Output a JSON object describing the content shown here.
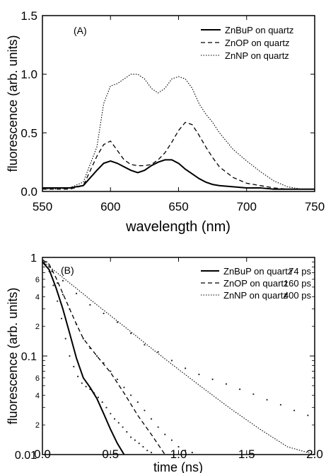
{
  "chart_data": [
    {
      "type": "line",
      "panel_label": "(A)",
      "xlabel": "wavelength (nm)",
      "ylabel": "fluorescence (arb. units)",
      "xlim": [
        550,
        750
      ],
      "ylim": [
        0,
        1.5
      ],
      "x_ticks": [
        550,
        600,
        650,
        700,
        750
      ],
      "x_tick_labels": [
        "550",
        "600",
        "650",
        "700",
        "750"
      ],
      "y_ticks": [
        0,
        0.5,
        1.0,
        1.5
      ],
      "y_tick_labels": [
        "0.0",
        "0.5",
        "1.0",
        "1.5"
      ],
      "grid": false,
      "legend_position": "top-right",
      "series": [
        {
          "name": "ZnBuP on quartz",
          "style": "solid",
          "x": [
            550,
            560,
            570,
            580,
            590,
            595,
            600,
            605,
            610,
            615,
            620,
            625,
            630,
            635,
            640,
            645,
            650,
            655,
            660,
            665,
            670,
            675,
            680,
            690,
            700,
            710,
            720,
            730,
            740,
            750
          ],
          "y": [
            0.03,
            0.03,
            0.03,
            0.05,
            0.18,
            0.24,
            0.26,
            0.24,
            0.21,
            0.18,
            0.16,
            0.18,
            0.22,
            0.25,
            0.27,
            0.27,
            0.24,
            0.19,
            0.15,
            0.11,
            0.08,
            0.06,
            0.05,
            0.04,
            0.03,
            0.03,
            0.02,
            0.02,
            0.02,
            0.02
          ]
        },
        {
          "name": "ZnOP on quartz",
          "style": "dashed",
          "x": [
            550,
            560,
            570,
            580,
            590,
            595,
            600,
            605,
            610,
            615,
            620,
            625,
            630,
            635,
            640,
            645,
            650,
            655,
            660,
            665,
            670,
            675,
            680,
            690,
            700,
            710,
            720,
            730,
            740,
            750
          ],
          "y": [
            0.02,
            0.02,
            0.02,
            0.05,
            0.3,
            0.4,
            0.43,
            0.35,
            0.27,
            0.23,
            0.22,
            0.22,
            0.23,
            0.27,
            0.33,
            0.42,
            0.52,
            0.59,
            0.57,
            0.48,
            0.38,
            0.29,
            0.21,
            0.12,
            0.07,
            0.05,
            0.03,
            0.02,
            0.02,
            0.02
          ]
        },
        {
          "name": "ZnNP on quartz",
          "style": "dotted",
          "x": [
            550,
            560,
            570,
            580,
            590,
            595,
            600,
            605,
            610,
            615,
            620,
            625,
            630,
            635,
            640,
            645,
            650,
            655,
            660,
            665,
            670,
            675,
            680,
            690,
            700,
            710,
            720,
            730,
            740,
            750
          ],
          "y": [
            0.02,
            0.02,
            0.03,
            0.08,
            0.38,
            0.75,
            0.9,
            0.92,
            0.96,
            1.0,
            1.0,
            0.96,
            0.88,
            0.84,
            0.88,
            0.96,
            0.98,
            0.96,
            0.88,
            0.75,
            0.66,
            0.59,
            0.5,
            0.36,
            0.26,
            0.17,
            0.09,
            0.04,
            0.02,
            0.02
          ]
        }
      ]
    },
    {
      "type": "scatter",
      "panel_label": "(B)",
      "xlabel": "time (ns)",
      "ylabel": "fluorescence (arb. units)",
      "xlim": [
        0,
        2.0
      ],
      "ylim": [
        0.01,
        1
      ],
      "y_scale": "log",
      "x_ticks": [
        0,
        0.5,
        1.0,
        1.5,
        2.0
      ],
      "x_tick_labels": [
        "0.0",
        "0.5",
        "1.0",
        "1.5",
        "2.0"
      ],
      "y_ticks": [
        0.01,
        0.1,
        1
      ],
      "y_tick_labels": [
        "0.01",
        "0.1",
        "1"
      ],
      "y_minor_ticks": [
        0.02,
        0.04,
        0.06,
        0.2,
        0.4,
        0.6
      ],
      "y_minor_tick_labels": [
        "2",
        "4",
        "6",
        "2",
        "4",
        "6"
      ],
      "grid": false,
      "legend_position": "top-right",
      "series": [
        {
          "name": "ZnBuP on quartz",
          "lifetime": "74 ps",
          "style": "solid",
          "fit_x": [
            0.0,
            0.05,
            0.1,
            0.15,
            0.2,
            0.25,
            0.3,
            0.35,
            0.4,
            0.45,
            0.5,
            0.55,
            0.6
          ],
          "fit_y": [
            0.9,
            0.75,
            0.49,
            0.3,
            0.17,
            0.095,
            0.06,
            0.048,
            0.037,
            0.026,
            0.018,
            0.013,
            0.01
          ],
          "data_x": [
            0.02,
            0.05,
            0.08,
            0.11,
            0.14,
            0.17,
            0.2,
            0.23,
            0.26,
            0.29,
            0.32,
            0.35,
            0.38,
            0.41,
            0.44,
            0.47,
            0.5,
            0.53,
            0.56,
            0.59,
            0.62,
            0.65,
            0.68,
            0.71,
            0.74,
            0.77,
            0.8
          ],
          "data_y": [
            0.85,
            0.72,
            0.52,
            0.36,
            0.24,
            0.15,
            0.1,
            0.078,
            0.062,
            0.053,
            0.049,
            0.046,
            0.042,
            0.038,
            0.034,
            0.03,
            0.026,
            0.023,
            0.021,
            0.019,
            0.017,
            0.015,
            0.014,
            0.013,
            0.012,
            0.011,
            0.0105
          ]
        },
        {
          "name": "ZnOP on quartz",
          "lifetime": "160 ps",
          "style": "dashed",
          "fit_x": [
            0.0,
            0.05,
            0.1,
            0.15,
            0.2,
            0.25,
            0.3,
            0.4,
            0.5,
            0.6,
            0.7,
            0.8,
            0.9
          ],
          "fit_y": [
            0.95,
            0.85,
            0.62,
            0.43,
            0.3,
            0.21,
            0.15,
            0.1,
            0.068,
            0.042,
            0.025,
            0.016,
            0.01
          ],
          "data_x": [
            0.03,
            0.07,
            0.11,
            0.15,
            0.2,
            0.25,
            0.3,
            0.35,
            0.4,
            0.45,
            0.5,
            0.55,
            0.6,
            0.65,
            0.7,
            0.75,
            0.8,
            0.85,
            0.9,
            0.95,
            1.0,
            1.05,
            1.1
          ],
          "data_y": [
            0.9,
            0.72,
            0.55,
            0.42,
            0.3,
            0.21,
            0.15,
            0.12,
            0.1,
            0.085,
            0.07,
            0.058,
            0.048,
            0.04,
            0.034,
            0.028,
            0.023,
            0.019,
            0.016,
            0.014,
            0.012,
            0.011,
            0.0105
          ]
        },
        {
          "name": "ZnNP on quartz",
          "lifetime": "400 ps",
          "style": "dotted",
          "fit_x": [
            0.0,
            0.2,
            0.4,
            0.6,
            0.8,
            1.0,
            1.2,
            1.4,
            1.6,
            1.8,
            2.0
          ],
          "fit_y": [
            0.92,
            0.55,
            0.33,
            0.2,
            0.12,
            0.073,
            0.045,
            0.028,
            0.018,
            0.012,
            0.01
          ],
          "data_x": [
            0.05,
            0.15,
            0.25,
            0.35,
            0.45,
            0.55,
            0.65,
            0.75,
            0.85,
            0.95,
            1.05,
            1.15,
            1.25,
            1.35,
            1.45,
            1.55,
            1.65,
            1.75,
            1.85,
            1.95
          ],
          "data_y": [
            0.8,
            0.58,
            0.43,
            0.33,
            0.27,
            0.22,
            0.17,
            0.13,
            0.11,
            0.09,
            0.075,
            0.065,
            0.058,
            0.052,
            0.046,
            0.041,
            0.036,
            0.032,
            0.028,
            0.025
          ]
        }
      ]
    }
  ]
}
